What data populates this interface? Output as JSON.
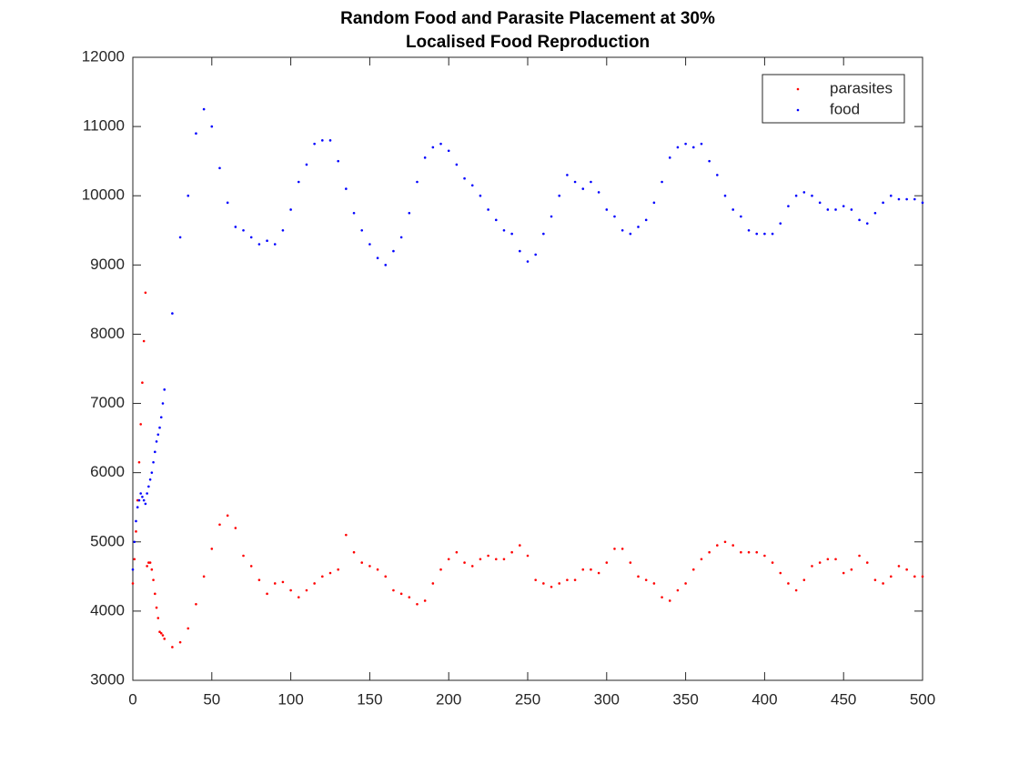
{
  "chart_data": {
    "type": "scatter",
    "title": "Random Food and Parasite Placement at 30%",
    "subtitle": "Localised Food Reproduction",
    "x": [
      0,
      1,
      2,
      3,
      4,
      5,
      6,
      7,
      8,
      9,
      10,
      11,
      12,
      13,
      14,
      15,
      16,
      17,
      18,
      19,
      20,
      25,
      30,
      35,
      40,
      45,
      50,
      55,
      60,
      65,
      70,
      75,
      80,
      85,
      90,
      95,
      100,
      105,
      110,
      115,
      120,
      125,
      130,
      135,
      140,
      145,
      150,
      155,
      160,
      165,
      170,
      175,
      180,
      185,
      190,
      195,
      200,
      205,
      210,
      215,
      220,
      225,
      230,
      235,
      240,
      245,
      250,
      255,
      260,
      265,
      270,
      275,
      280,
      285,
      290,
      295,
      300,
      305,
      310,
      315,
      320,
      325,
      330,
      335,
      340,
      345,
      350,
      355,
      360,
      365,
      370,
      375,
      380,
      385,
      390,
      395,
      400,
      405,
      410,
      415,
      420,
      425,
      430,
      435,
      440,
      445,
      450,
      455,
      460,
      465,
      470,
      475,
      480,
      485,
      490,
      495,
      500
    ],
    "series": [
      {
        "name": "parasites",
        "color": "#ff0000",
        "values": [
          4400,
          4750,
          5150,
          5600,
          6150,
          6700,
          7300,
          7900,
          8600,
          4650,
          4700,
          4700,
          4600,
          4450,
          4250,
          4050,
          3900,
          3700,
          3680,
          3650,
          3600,
          3480,
          3550,
          3750,
          4100,
          4500,
          4900,
          5250,
          5380,
          5200,
          4800,
          4650,
          4450,
          4250,
          4400,
          4420,
          4300,
          4200,
          4300,
          4400,
          4500,
          4550,
          4600,
          5100,
          4850,
          4700,
          4650,
          4600,
          4500,
          4300,
          4250,
          4200,
          4100,
          4150,
          4400,
          4600,
          4750,
          4850,
          4700,
          4650,
          4750,
          4800,
          4750,
          4750,
          4850,
          4950,
          4800,
          4450,
          4400,
          4350,
          4400,
          4450,
          4450,
          4600,
          4600,
          4550,
          4700,
          4900,
          4900,
          4700,
          4500,
          4450,
          4400,
          4200,
          4150,
          4300,
          4400,
          4600,
          4750,
          4850,
          4950,
          5000,
          4950,
          4850,
          4850,
          4850,
          4800,
          4700,
          4550,
          4400,
          4300,
          4450,
          4650,
          4700,
          4750,
          4750,
          4550,
          4600,
          4800,
          4700,
          4450,
          4400,
          4500,
          4650,
          4600,
          4500,
          4500
        ]
      },
      {
        "name": "food",
        "color": "#0000ff",
        "values": [
          4600,
          5000,
          5300,
          5500,
          5600,
          5700,
          5650,
          5600,
          5550,
          5700,
          5800,
          5900,
          6000,
          6150,
          6300,
          6450,
          6550,
          6650,
          6800,
          7000,
          7200,
          8300,
          9400,
          10000,
          10900,
          11250,
          11000,
          10400,
          9900,
          9550,
          9500,
          9400,
          9300,
          9350,
          9300,
          9500,
          9800,
          10200,
          10450,
          10750,
          10800,
          10800,
          10500,
          10100,
          9750,
          9500,
          9300,
          9100,
          9000,
          9200,
          9400,
          9750,
          10200,
          10550,
          10700,
          10750,
          10650,
          10450,
          10250,
          10150,
          10000,
          9800,
          9650,
          9500,
          9450,
          9200,
          9050,
          9150,
          9450,
          9700,
          10000,
          10300,
          10200,
          10100,
          10200,
          10050,
          9800,
          9700,
          9500,
          9450,
          9550,
          9650,
          9900,
          10200,
          10550,
          10700,
          10750,
          10700,
          10750,
          10500,
          10300,
          10000,
          9800,
          9700,
          9500,
          9450,
          9450,
          9450,
          9600,
          9850,
          10000,
          10050,
          10000,
          9900,
          9800,
          9800,
          9850,
          9800,
          9650,
          9600,
          9750,
          9900,
          10000,
          9950,
          9950,
          9950,
          9900
        ]
      }
    ],
    "xlim": [
      0,
      500
    ],
    "xticks": [
      0,
      50,
      100,
      150,
      200,
      250,
      300,
      350,
      400,
      450,
      500
    ],
    "ylim": [
      3000,
      12000
    ],
    "yticks": [
      3000,
      4000,
      5000,
      6000,
      7000,
      8000,
      9000,
      10000,
      11000,
      12000
    ],
    "grid": false,
    "legend": "top-right"
  }
}
